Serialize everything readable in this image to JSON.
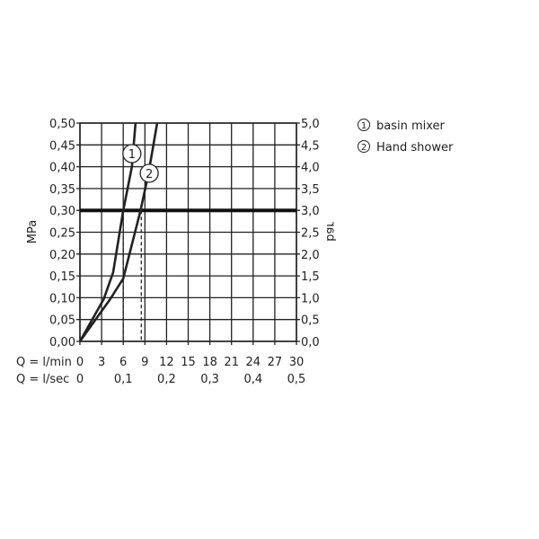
{
  "chart_data": {
    "type": "line",
    "xlabel_rows": [
      {
        "label": "Q = l/min",
        "ticks": [
          "0",
          "3",
          "6",
          "9",
          "12",
          "15",
          "18",
          "21",
          "24",
          "27",
          "30"
        ],
        "values": [
          0,
          3,
          6,
          9,
          12,
          15,
          18,
          21,
          24,
          27,
          30
        ]
      },
      {
        "label": "Q = l/sec",
        "ticks": [
          "0",
          "0,1",
          "0,2",
          "0,3",
          "0,4",
          "0,5"
        ],
        "values": [
          0,
          6,
          12,
          18,
          24,
          30
        ]
      }
    ],
    "ylabel_left": "MPa",
    "ylabel_right": "bar",
    "yticks_left": [
      "0,00",
      "0,05",
      "0,10",
      "0,15",
      "0,20",
      "0,25",
      "0,30",
      "0,35",
      "0,40",
      "0,45",
      "0,50"
    ],
    "yticks_right": [
      "0,0",
      "0,5",
      "1,0",
      "1,5",
      "2,0",
      "2,5",
      "3,0",
      "3,5",
      "4,0",
      "4,5",
      "5,0"
    ],
    "xlim": [
      0,
      30
    ],
    "ylim": [
      0,
      0.5
    ],
    "grid": true,
    "reference_line": 0.3,
    "legend": [
      {
        "marker": "1",
        "label": "basin mixer"
      },
      {
        "marker": "2",
        "label": "Hand shower"
      }
    ],
    "legend_placement": "right",
    "series": [
      {
        "name": "basin mixer",
        "marker": "1",
        "x": [
          0,
          3.3,
          4.6,
          6.0,
          7.2,
          7.7
        ],
        "y": [
          0,
          0.097,
          0.158,
          0.3,
          0.4,
          0.5
        ],
        "label_at": [
          7.2,
          0.43
        ],
        "dashed_at_x": 6.0
      },
      {
        "name": "Hand shower",
        "marker": "2",
        "x": [
          0,
          4.2,
          6.0,
          8.4,
          9.5,
          10.7
        ],
        "y": [
          0,
          0.097,
          0.144,
          0.3,
          0.385,
          0.5
        ],
        "label_at": [
          9.6,
          0.385
        ],
        "dashed_at_x": 8.5
      }
    ]
  }
}
